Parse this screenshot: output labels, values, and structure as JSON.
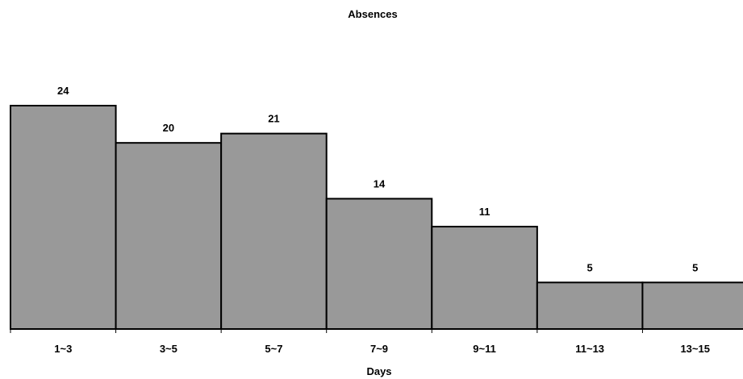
{
  "chart_data": {
    "type": "bar",
    "title": "Absences",
    "xlabel": "Days",
    "ylabel": "",
    "categories": [
      "1~3",
      "3~5",
      "5~7",
      "7~9",
      "9~11",
      "11~13",
      "13~15"
    ],
    "values": [
      24,
      20,
      21,
      14,
      11,
      5,
      5
    ],
    "ylim": [
      0,
      24
    ],
    "grid": false,
    "legend": "none",
    "data_labels": true,
    "bar_gap": 0,
    "colors": {
      "bar_fill": "#999999",
      "bar_stroke": "#000000",
      "axis": "#000000",
      "text": "#000000"
    }
  }
}
